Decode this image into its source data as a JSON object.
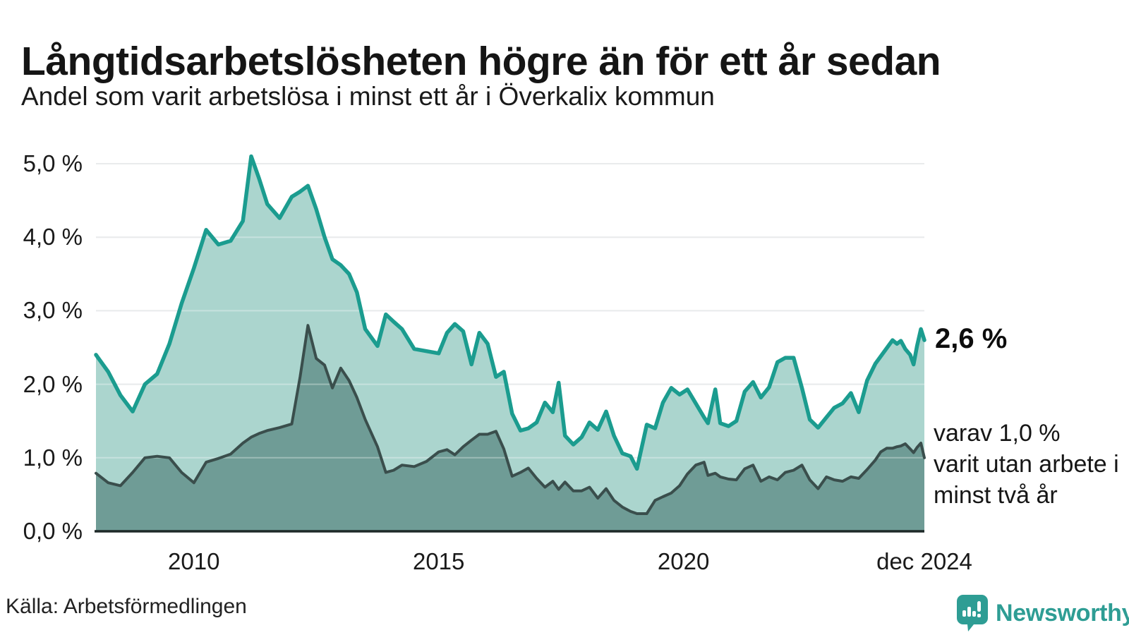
{
  "header": {
    "title": "Långtidsarbetslösheten högre än för ett år sedan",
    "subtitle": "Andel som varit arbetslösa i minst ett år i Överkalix kommun"
  },
  "annotations": {
    "end_value": "2,6 %",
    "secondary_lines": [
      "varav 1,0 %",
      "varit utan arbete i",
      "minst två år"
    ]
  },
  "footer": {
    "source": "Källa: Arbetsförmedlingen"
  },
  "logo": {
    "icon": "newsworthy-speech-bubble-chart-icon",
    "text": "Newsworthy",
    "color": "#2e9d94"
  },
  "colors": {
    "line_1yr": "#1b9c8f",
    "fill_1yr": "#abd5ce",
    "line_2yr": "#3a4e4c",
    "fill_2yr": "#6f9c96",
    "axis": "#1e2928",
    "gridline": "#dfe2e4",
    "text": "#1a1a1a"
  },
  "chart_data": {
    "type": "area",
    "title": "Långtidsarbetslösheten högre än för ett år sedan",
    "subtitle": "Andel som varit arbetslösa i minst ett år i Överkalix kommun",
    "x_unit": "decimal_year",
    "grid": "horizontal",
    "legend_position": "right-edge-annotations",
    "ylim": [
      0,
      5.2
    ],
    "xlim": [
      2008.0,
      2024.92
    ],
    "x": [
      2008.0,
      2008.25,
      2008.5,
      2008.75,
      2009.0,
      2009.25,
      2009.5,
      2009.75,
      2010.0,
      2010.25,
      2010.5,
      2010.75,
      2011.0,
      2011.17,
      2011.33,
      2011.5,
      2011.75,
      2012.0,
      2012.17,
      2012.33,
      2012.5,
      2012.67,
      2012.83,
      2013.0,
      2013.17,
      2013.33,
      2013.5,
      2013.75,
      2013.92,
      2014.08,
      2014.25,
      2014.5,
      2014.75,
      2015.0,
      2015.17,
      2015.33,
      2015.5,
      2015.67,
      2015.83,
      2016.0,
      2016.17,
      2016.33,
      2016.5,
      2016.67,
      2016.83,
      2017.0,
      2017.17,
      2017.33,
      2017.45,
      2017.58,
      2017.75,
      2017.92,
      2018.08,
      2018.25,
      2018.42,
      2018.58,
      2018.75,
      2018.92,
      2019.05,
      2019.25,
      2019.42,
      2019.58,
      2019.75,
      2019.92,
      2020.08,
      2020.25,
      2020.42,
      2020.5,
      2020.65,
      2020.75,
      2020.92,
      2021.08,
      2021.25,
      2021.42,
      2021.58,
      2021.75,
      2021.92,
      2022.08,
      2022.25,
      2022.42,
      2022.58,
      2022.75,
      2022.92,
      2023.08,
      2023.25,
      2023.42,
      2023.58,
      2023.75,
      2023.92,
      2024.03,
      2024.15,
      2024.27,
      2024.36,
      2024.44,
      2024.53,
      2024.63,
      2024.7,
      2024.77,
      2024.85,
      2024.92
    ],
    "series": [
      {
        "name": "Andel som varit arbetslösa i minst ett år",
        "color": "#1b9c8f",
        "fill": "#abd5ce",
        "end_label": "2,6 %",
        "end_value_pct": 2.6,
        "values": [
          2.4,
          2.17,
          1.85,
          1.63,
          2.0,
          2.14,
          2.55,
          3.1,
          3.58,
          4.1,
          3.9,
          3.95,
          4.22,
          5.1,
          4.8,
          4.45,
          4.26,
          4.55,
          4.62,
          4.7,
          4.38,
          4.0,
          3.7,
          3.62,
          3.5,
          3.25,
          2.75,
          2.52,
          2.95,
          2.85,
          2.75,
          2.48,
          2.45,
          2.42,
          2.7,
          2.82,
          2.72,
          2.27,
          2.7,
          2.55,
          2.1,
          2.17,
          1.6,
          1.37,
          1.4,
          1.48,
          1.75,
          1.62,
          2.02,
          1.3,
          1.18,
          1.28,
          1.48,
          1.38,
          1.63,
          1.3,
          1.06,
          1.02,
          0.85,
          1.45,
          1.4,
          1.75,
          1.95,
          1.86,
          1.93,
          1.74,
          1.55,
          1.47,
          1.93,
          1.47,
          1.43,
          1.5,
          1.9,
          2.03,
          1.82,
          1.96,
          2.3,
          2.36,
          2.36,
          1.95,
          1.52,
          1.41,
          1.55,
          1.68,
          1.74,
          1.88,
          1.62,
          2.05,
          2.28,
          2.38,
          2.49,
          2.6,
          2.55,
          2.59,
          2.48,
          2.4,
          2.27,
          2.52,
          2.75,
          2.6
        ]
      },
      {
        "name": "varav utan arbete i minst två år",
        "color": "#3a4e4c",
        "fill": "#6f9c96",
        "end_label": "varav 1,0 % varit utan arbete i minst två år",
        "end_value_pct": 1.0,
        "values": [
          0.79,
          0.66,
          0.62,
          0.8,
          1.0,
          1.02,
          1.0,
          0.8,
          0.66,
          0.94,
          0.99,
          1.05,
          1.2,
          1.28,
          1.33,
          1.37,
          1.41,
          1.46,
          2.1,
          2.8,
          2.35,
          2.26,
          1.95,
          2.22,
          2.05,
          1.82,
          1.52,
          1.15,
          0.8,
          0.83,
          0.9,
          0.88,
          0.95,
          1.08,
          1.11,
          1.04,
          1.15,
          1.24,
          1.32,
          1.32,
          1.36,
          1.12,
          0.75,
          0.8,
          0.86,
          0.72,
          0.6,
          0.68,
          0.57,
          0.67,
          0.55,
          0.55,
          0.6,
          0.45,
          0.58,
          0.42,
          0.33,
          0.27,
          0.24,
          0.24,
          0.42,
          0.47,
          0.52,
          0.62,
          0.78,
          0.9,
          0.94,
          0.76,
          0.79,
          0.74,
          0.71,
          0.7,
          0.85,
          0.9,
          0.68,
          0.74,
          0.7,
          0.8,
          0.83,
          0.9,
          0.7,
          0.58,
          0.74,
          0.7,
          0.68,
          0.74,
          0.72,
          0.84,
          0.97,
          1.08,
          1.13,
          1.13,
          1.15,
          1.16,
          1.19,
          1.12,
          1.07,
          1.14,
          1.2,
          1.0
        ]
      }
    ],
    "yticks": [
      {
        "value": 5,
        "label": "5,0 %"
      },
      {
        "value": 4,
        "label": "4,0 %"
      },
      {
        "value": 3,
        "label": "3,0 %"
      },
      {
        "value": 2,
        "label": "2,0 %"
      },
      {
        "value": 1,
        "label": "1,0 %"
      },
      {
        "value": 0,
        "label": "0,0 %"
      }
    ],
    "xticks": [
      {
        "value": 2010.0,
        "label": "2010"
      },
      {
        "value": 2015.0,
        "label": "2015"
      },
      {
        "value": 2020.0,
        "label": "2020"
      },
      {
        "value": 2024.92,
        "label": "dec 2024"
      }
    ]
  }
}
